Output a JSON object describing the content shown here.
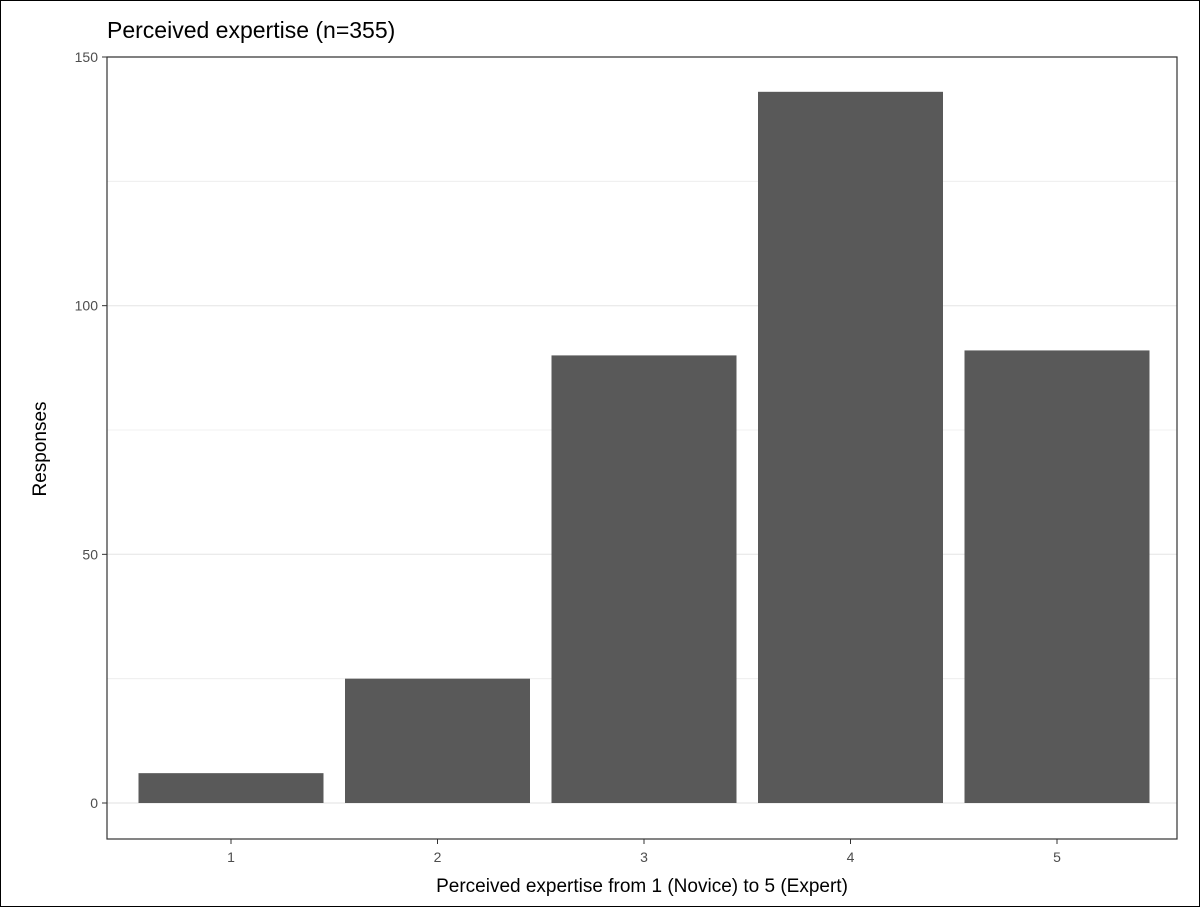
{
  "chart_data": {
    "type": "bar",
    "title": "Perceived expertise (n=355)",
    "xlabel": "Perceived expertise from 1 (Novice) to 5 (Expert)",
    "ylabel": "Responses",
    "categories": [
      "1",
      "2",
      "3",
      "4",
      "5"
    ],
    "values": [
      6,
      25,
      90,
      143,
      91
    ],
    "ylim": [
      0,
      150
    ],
    "yticks": [
      "0",
      "50",
      "100",
      "150"
    ],
    "grid": true,
    "legend": "none",
    "bar_color": "#595959",
    "grid_color": "#ebebeb",
    "panel_border_color": "#333333"
  }
}
